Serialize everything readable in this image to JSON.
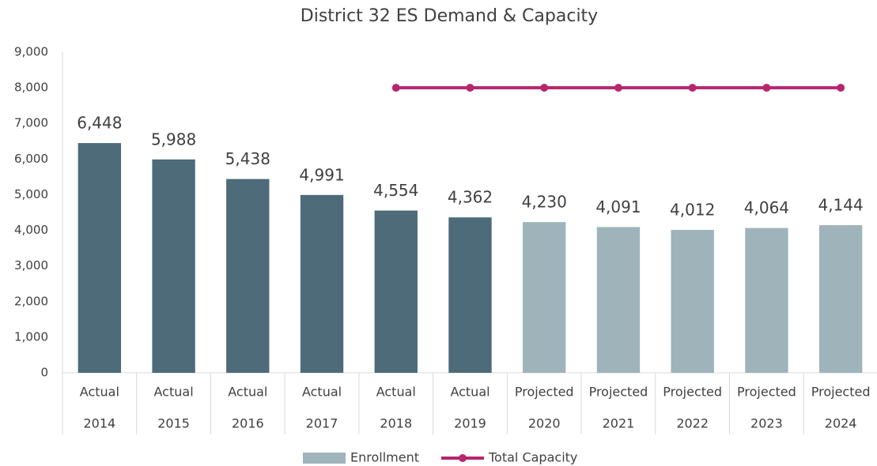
{
  "chart_data": {
    "type": "bar",
    "title": "District 32 ES Demand & Capacity",
    "categories": [
      [
        "Actual",
        "2014"
      ],
      [
        "Actual",
        "2015"
      ],
      [
        "Actual",
        "2016"
      ],
      [
        "Actual",
        "2017"
      ],
      [
        "Actual",
        "2018"
      ],
      [
        "Actual",
        "2019"
      ],
      [
        "Projected",
        "2020"
      ],
      [
        "Projected",
        "2021"
      ],
      [
        "Projected",
        "2022"
      ],
      [
        "Projected",
        "2023"
      ],
      [
        "Projected",
        "2024"
      ]
    ],
    "series": [
      {
        "name": "Enrollment",
        "type": "bar",
        "color": "#9fb3bb",
        "colors": [
          "#4d6b78",
          "#4d6b78",
          "#4d6b78",
          "#4d6b78",
          "#4d6b78",
          "#4d6b78",
          "#9fb3bb",
          "#9fb3bb",
          "#9fb3bb",
          "#9fb3bb",
          "#9fb3bb"
        ],
        "values": [
          6448,
          5988,
          5438,
          4991,
          4554,
          4362,
          4230,
          4091,
          4012,
          4064,
          4144
        ],
        "value_labels": [
          "6,448",
          "5,988",
          "5,438",
          "4,991",
          "4,554",
          "4,362",
          "4,230",
          "4,091",
          "4,012",
          "4,064",
          "4,144"
        ]
      },
      {
        "name": "Total Capacity",
        "type": "line",
        "color": "#b5266e",
        "values": [
          null,
          null,
          null,
          null,
          8000,
          8000,
          8000,
          8000,
          8000,
          8000,
          8000
        ]
      }
    ],
    "ylim": [
      0,
      9000
    ],
    "yticks": [
      0,
      {
        "value": 1000,
        "label": "1,000"
      },
      {
        "value": 2000,
        "label": "2,000"
      },
      {
        "value": 3000,
        "label": "3,000"
      },
      {
        "value": 4000,
        "label": "4,000"
      },
      {
        "value": 5000,
        "label": "5,000"
      },
      {
        "value": 6000,
        "label": "6,000"
      },
      {
        "value": 7000,
        "label": "7,000"
      },
      {
        "value": 8000,
        "label": "8,000"
      },
      {
        "value": 9000,
        "label": "9,000"
      }
    ],
    "grid": false,
    "legend": "bottom"
  }
}
